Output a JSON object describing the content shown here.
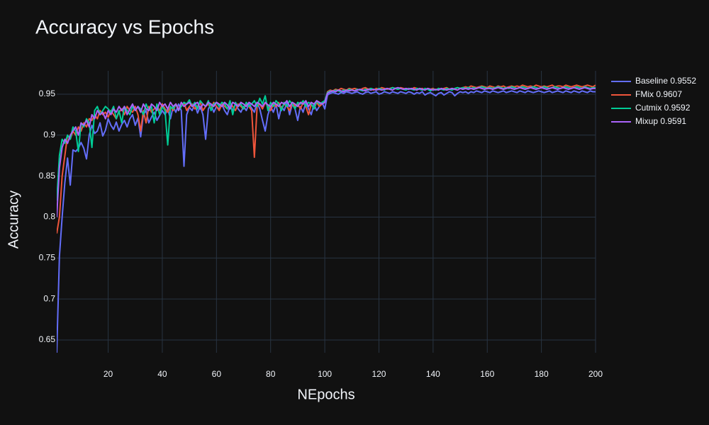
{
  "chart_data": {
    "type": "line",
    "title": "Accuracy vs Epochs",
    "x_label": "NEpochs",
    "y_label": "Accuracy",
    "grid": true,
    "legend": "right",
    "xlim": [
      1,
      200
    ],
    "ylim": [
      0.6344,
      0.9785
    ],
    "xticks": [
      20,
      40,
      60,
      80,
      100,
      120,
      140,
      160,
      180,
      200
    ],
    "yticks": [
      0.65,
      0.7,
      0.75,
      0.8,
      0.85,
      0.9,
      0.95
    ],
    "x": [
      1,
      2,
      3,
      4,
      5,
      6,
      7,
      8,
      9,
      10,
      11,
      12,
      13,
      14,
      15,
      16,
      17,
      18,
      19,
      20,
      21,
      22,
      23,
      24,
      25,
      26,
      27,
      28,
      29,
      30,
      31,
      32,
      33,
      34,
      35,
      36,
      37,
      38,
      39,
      40,
      41,
      42,
      43,
      44,
      45,
      46,
      47,
      48,
      49,
      50,
      51,
      52,
      53,
      54,
      55,
      56,
      57,
      58,
      59,
      60,
      61,
      62,
      63,
      64,
      65,
      66,
      67,
      68,
      69,
      70,
      71,
      72,
      73,
      74,
      75,
      76,
      77,
      78,
      79,
      80,
      81,
      82,
      83,
      84,
      85,
      86,
      87,
      88,
      89,
      90,
      91,
      92,
      93,
      94,
      95,
      96,
      97,
      98,
      99,
      100,
      101,
      102,
      103,
      104,
      105,
      106,
      107,
      108,
      109,
      110,
      111,
      112,
      113,
      114,
      115,
      116,
      117,
      118,
      119,
      120,
      121,
      122,
      123,
      124,
      125,
      126,
      127,
      128,
      129,
      130,
      131,
      132,
      133,
      134,
      135,
      136,
      137,
      138,
      139,
      140,
      141,
      142,
      143,
      144,
      145,
      146,
      147,
      148,
      149,
      150,
      151,
      152,
      153,
      154,
      155,
      156,
      157,
      158,
      159,
      160,
      161,
      162,
      163,
      164,
      165,
      166,
      167,
      168,
      169,
      170,
      171,
      172,
      173,
      174,
      175,
      176,
      177,
      178,
      179,
      180,
      181,
      182,
      183,
      184,
      185,
      186,
      187,
      188,
      189,
      190,
      191,
      192,
      193,
      194,
      195,
      196,
      197,
      198,
      199,
      200
    ],
    "series": [
      {
        "name": "Baseline 0.9552",
        "color": "#636efa",
        "values": [
          0.634,
          0.752,
          0.8,
          0.842,
          0.872,
          0.839,
          0.882,
          0.88,
          0.884,
          0.891,
          0.884,
          0.871,
          0.9,
          0.912,
          0.902,
          0.905,
          0.915,
          0.899,
          0.906,
          0.92,
          0.912,
          0.907,
          0.916,
          0.905,
          0.913,
          0.918,
          0.91,
          0.92,
          0.925,
          0.912,
          0.921,
          0.898,
          0.925,
          0.93,
          0.915,
          0.922,
          0.928,
          0.918,
          0.924,
          0.93,
          0.925,
          0.932,
          0.92,
          0.935,
          0.928,
          0.938,
          0.93,
          0.862,
          0.925,
          0.934,
          0.93,
          0.938,
          0.927,
          0.935,
          0.925,
          0.895,
          0.932,
          0.938,
          0.928,
          0.935,
          0.932,
          0.938,
          0.93,
          0.925,
          0.936,
          0.93,
          0.938,
          0.932,
          0.928,
          0.935,
          0.93,
          0.938,
          0.933,
          0.928,
          0.94,
          0.932,
          0.918,
          0.905,
          0.925,
          0.935,
          0.928,
          0.938,
          0.92,
          0.935,
          0.93,
          0.94,
          0.925,
          0.938,
          0.932,
          0.918,
          0.935,
          0.928,
          0.94,
          0.932,
          0.925,
          0.938,
          0.93,
          0.935,
          0.94,
          0.932,
          0.949,
          0.951,
          0.952,
          0.951,
          0.95,
          0.952,
          0.951,
          0.953,
          0.952,
          0.951,
          0.952,
          0.953,
          0.951,
          0.95,
          0.952,
          0.953,
          0.951,
          0.952,
          0.953,
          0.95,
          0.951,
          0.953,
          0.952,
          0.951,
          0.953,
          0.952,
          0.951,
          0.953,
          0.952,
          0.951,
          0.953,
          0.952,
          0.95,
          0.952,
          0.951,
          0.953,
          0.949,
          0.951,
          0.952,
          0.95,
          0.948,
          0.951,
          0.952,
          0.949,
          0.951,
          0.953,
          0.952,
          0.948,
          0.951,
          0.953,
          0.952,
          0.953,
          0.951,
          0.953,
          0.952,
          0.954,
          0.953,
          0.952,
          0.954,
          0.953,
          0.952,
          0.954,
          0.953,
          0.952,
          0.953,
          0.954,
          0.952,
          0.953,
          0.954,
          0.953,
          0.952,
          0.954,
          0.953,
          0.952,
          0.954,
          0.953,
          0.952,
          0.953,
          0.954,
          0.953,
          0.952,
          0.953,
          0.954,
          0.952,
          0.953,
          0.954,
          0.953,
          0.952,
          0.954,
          0.953,
          0.952,
          0.954,
          0.953,
          0.952,
          0.954,
          0.953,
          0.952,
          0.954,
          0.953,
          0.953
        ]
      },
      {
        "name": "FMix 0.9607",
        "color": "#EF553B",
        "values": [
          0.78,
          0.8,
          0.85,
          0.875,
          0.9,
          0.895,
          0.905,
          0.9,
          0.91,
          0.905,
          0.915,
          0.91,
          0.92,
          0.918,
          0.925,
          0.92,
          0.93,
          0.925,
          0.928,
          0.922,
          0.93,
          0.925,
          0.92,
          0.928,
          0.932,
          0.925,
          0.935,
          0.93,
          0.928,
          0.935,
          0.925,
          0.905,
          0.93,
          0.915,
          0.935,
          0.928,
          0.932,
          0.935,
          0.93,
          0.938,
          0.932,
          0.928,
          0.935,
          0.93,
          0.938,
          0.932,
          0.935,
          0.94,
          0.93,
          0.935,
          0.938,
          0.932,
          0.935,
          0.94,
          0.93,
          0.935,
          0.938,
          0.932,
          0.94,
          0.935,
          0.93,
          0.938,
          0.935,
          0.932,
          0.94,
          0.935,
          0.93,
          0.938,
          0.935,
          0.932,
          0.938,
          0.935,
          0.93,
          0.873,
          0.935,
          0.938,
          0.932,
          0.94,
          0.935,
          0.93,
          0.938,
          0.935,
          0.94,
          0.932,
          0.938,
          0.935,
          0.93,
          0.94,
          0.935,
          0.938,
          0.932,
          0.94,
          0.935,
          0.925,
          0.938,
          0.932,
          0.94,
          0.935,
          0.938,
          0.94,
          0.953,
          0.955,
          0.954,
          0.956,
          0.955,
          0.957,
          0.956,
          0.955,
          0.957,
          0.956,
          0.957,
          0.956,
          0.955,
          0.957,
          0.958,
          0.956,
          0.957,
          0.955,
          0.957,
          0.956,
          0.958,
          0.957,
          0.956,
          0.957,
          0.958,
          0.957,
          0.956,
          0.958,
          0.957,
          0.956,
          0.957,
          0.956,
          0.958,
          0.957,
          0.956,
          0.957,
          0.955,
          0.957,
          0.956,
          0.957,
          0.955,
          0.957,
          0.956,
          0.957,
          0.958,
          0.956,
          0.957,
          0.956,
          0.958,
          0.957,
          0.958,
          0.959,
          0.958,
          0.96,
          0.959,
          0.958,
          0.959,
          0.96,
          0.959,
          0.958,
          0.96,
          0.959,
          0.958,
          0.96,
          0.959,
          0.96,
          0.958,
          0.959,
          0.96,
          0.959,
          0.96,
          0.959,
          0.961,
          0.96,
          0.959,
          0.96,
          0.959,
          0.961,
          0.96,
          0.959,
          0.96,
          0.959,
          0.96,
          0.961,
          0.959,
          0.96,
          0.96,
          0.959,
          0.961,
          0.96,
          0.959,
          0.96,
          0.961,
          0.96,
          0.959,
          0.96,
          0.961,
          0.96,
          0.959,
          0.961
        ]
      },
      {
        "name": "Cutmix 0.9592",
        "color": "#00cc96",
        "values": [
          0.82,
          0.875,
          0.895,
          0.89,
          0.9,
          0.895,
          0.91,
          0.905,
          0.88,
          0.915,
          0.91,
          0.92,
          0.915,
          0.885,
          0.93,
          0.935,
          0.925,
          0.93,
          0.935,
          0.932,
          0.928,
          0.935,
          0.92,
          0.93,
          0.915,
          0.935,
          0.93,
          0.925,
          0.935,
          0.93,
          0.935,
          0.932,
          0.925,
          0.938,
          0.93,
          0.935,
          0.915,
          0.938,
          0.925,
          0.935,
          0.93,
          0.888,
          0.935,
          0.932,
          0.938,
          0.93,
          0.935,
          0.94,
          0.938,
          0.943,
          0.935,
          0.94,
          0.932,
          0.942,
          0.938,
          0.935,
          0.942,
          0.93,
          0.938,
          0.94,
          0.935,
          0.94,
          0.938,
          0.932,
          0.942,
          0.925,
          0.94,
          0.935,
          0.938,
          0.932,
          0.94,
          0.935,
          0.938,
          0.942,
          0.935,
          0.945,
          0.938,
          0.948,
          0.93,
          0.94,
          0.935,
          0.942,
          0.938,
          0.93,
          0.94,
          0.935,
          0.942,
          0.938,
          0.932,
          0.94,
          0.938,
          0.942,
          0.935,
          0.94,
          0.938,
          0.932,
          0.942,
          0.938,
          0.94,
          0.942,
          0.952,
          0.954,
          0.953,
          0.955,
          0.954,
          0.953,
          0.955,
          0.954,
          0.956,
          0.955,
          0.954,
          0.956,
          0.955,
          0.954,
          0.956,
          0.955,
          0.957,
          0.956,
          0.955,
          0.957,
          0.956,
          0.955,
          0.957,
          0.956,
          0.958,
          0.957,
          0.956,
          0.957,
          0.956,
          0.955,
          0.957,
          0.956,
          0.955,
          0.957,
          0.956,
          0.955,
          0.957,
          0.956,
          0.954,
          0.956,
          0.955,
          0.957,
          0.956,
          0.955,
          0.957,
          0.956,
          0.955,
          0.957,
          0.958,
          0.957,
          0.958,
          0.957,
          0.958,
          0.957,
          0.958,
          0.957,
          0.958,
          0.959,
          0.958,
          0.957,
          0.958,
          0.957,
          0.958,
          0.959,
          0.958,
          0.957,
          0.958,
          0.957,
          0.959,
          0.958,
          0.957,
          0.958,
          0.959,
          0.958,
          0.957,
          0.958,
          0.959,
          0.958,
          0.957,
          0.958,
          0.959,
          0.958,
          0.957,
          0.958,
          0.959,
          0.958,
          0.957,
          0.958,
          0.959,
          0.958,
          0.957,
          0.958,
          0.959,
          0.958,
          0.957,
          0.959,
          0.958,
          0.957,
          0.958,
          0.958
        ]
      },
      {
        "name": "Mixup 0.9591",
        "color": "#ab63fa",
        "values": [
          0.8,
          0.86,
          0.885,
          0.895,
          0.89,
          0.9,
          0.905,
          0.91,
          0.9,
          0.915,
          0.912,
          0.918,
          0.91,
          0.925,
          0.92,
          0.93,
          0.925,
          0.928,
          0.92,
          0.93,
          0.925,
          0.932,
          0.928,
          0.935,
          0.93,
          0.935,
          0.925,
          0.932,
          0.938,
          0.93,
          0.935,
          0.928,
          0.938,
          0.932,
          0.93,
          0.938,
          0.935,
          0.93,
          0.94,
          0.935,
          0.938,
          0.932,
          0.94,
          0.935,
          0.938,
          0.93,
          0.94,
          0.935,
          0.938,
          0.94,
          0.935,
          0.938,
          0.94,
          0.932,
          0.938,
          0.935,
          0.94,
          0.938,
          0.935,
          0.94,
          0.938,
          0.935,
          0.94,
          0.937,
          0.932,
          0.94,
          0.938,
          0.935,
          0.94,
          0.938,
          0.935,
          0.94,
          0.938,
          0.935,
          0.94,
          0.938,
          0.935,
          0.94,
          0.937,
          0.935,
          0.94,
          0.938,
          0.935,
          0.94,
          0.938,
          0.942,
          0.935,
          0.94,
          0.938,
          0.935,
          0.94,
          0.938,
          0.942,
          0.935,
          0.94,
          0.938,
          0.942,
          0.94,
          0.938,
          0.94,
          0.951,
          0.953,
          0.954,
          0.953,
          0.955,
          0.954,
          0.953,
          0.955,
          0.954,
          0.955,
          0.954,
          0.955,
          0.956,
          0.955,
          0.954,
          0.956,
          0.955,
          0.956,
          0.955,
          0.956,
          0.955,
          0.956,
          0.957,
          0.956,
          0.955,
          0.957,
          0.958,
          0.957,
          0.956,
          0.957,
          0.956,
          0.957,
          0.956,
          0.955,
          0.957,
          0.956,
          0.955,
          0.957,
          0.956,
          0.955,
          0.956,
          0.955,
          0.957,
          0.956,
          0.955,
          0.956,
          0.957,
          0.956,
          0.955,
          0.957,
          0.956,
          0.957,
          0.956,
          0.957,
          0.956,
          0.957,
          0.958,
          0.957,
          0.956,
          0.957,
          0.957,
          0.956,
          0.957,
          0.958,
          0.957,
          0.956,
          0.957,
          0.958,
          0.957,
          0.956,
          0.957,
          0.958,
          0.957,
          0.956,
          0.957,
          0.958,
          0.957,
          0.956,
          0.957,
          0.958,
          0.957,
          0.956,
          0.957,
          0.958,
          0.957,
          0.956,
          0.957,
          0.958,
          0.957,
          0.956,
          0.957,
          0.958,
          0.957,
          0.956,
          0.957,
          0.958,
          0.957,
          0.956,
          0.957,
          0.957
        ]
      }
    ]
  }
}
